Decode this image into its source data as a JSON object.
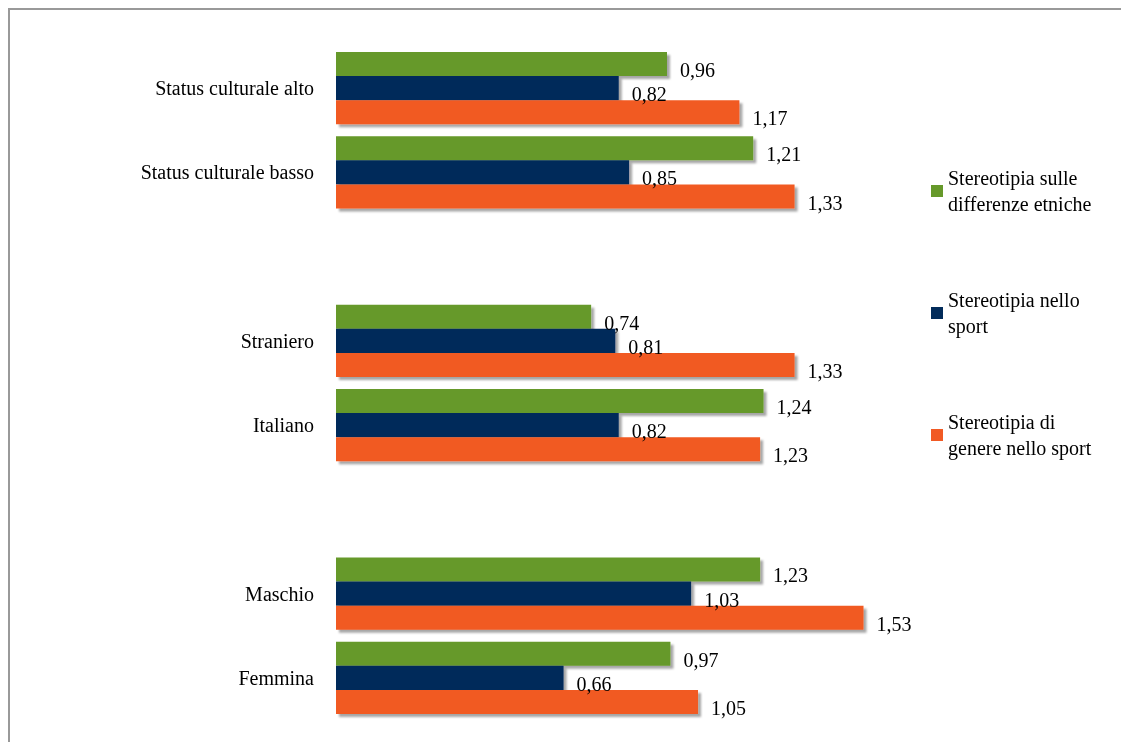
{
  "chart_data": {
    "type": "bar",
    "orientation": "horizontal",
    "categories": [
      "Status culturale alto",
      "Status culturale basso",
      null,
      "Straniero",
      "Italiano",
      null,
      "Maschio",
      "Femmina"
    ],
    "series": [
      {
        "name": "Stereotipia sulle differenze etniche",
        "color": "#66992a",
        "values": [
          0.96,
          1.21,
          null,
          0.74,
          1.24,
          null,
          1.23,
          0.97
        ],
        "value_labels": [
          "0,96",
          "1,21",
          null,
          "0,74",
          "1,24",
          null,
          "1,23",
          "0,97"
        ]
      },
      {
        "name": "Stereotipia nello sport",
        "color": "#022b5a",
        "values": [
          0.82,
          0.85,
          null,
          0.81,
          0.82,
          null,
          1.03,
          0.66
        ],
        "value_labels": [
          "0,82",
          "0,85",
          null,
          "0,81",
          "0,82",
          null,
          "1,03",
          "0,66"
        ]
      },
      {
        "name": "Stereotipia di genere nello sport",
        "color": "#f15a24",
        "values": [
          1.17,
          1.33,
          null,
          1.33,
          1.23,
          null,
          1.53,
          1.05
        ],
        "value_labels": [
          "1,17",
          "1,33",
          null,
          "1,33",
          "1,23",
          null,
          "1,53",
          "1,05"
        ]
      }
    ],
    "legend": "right"
  }
}
